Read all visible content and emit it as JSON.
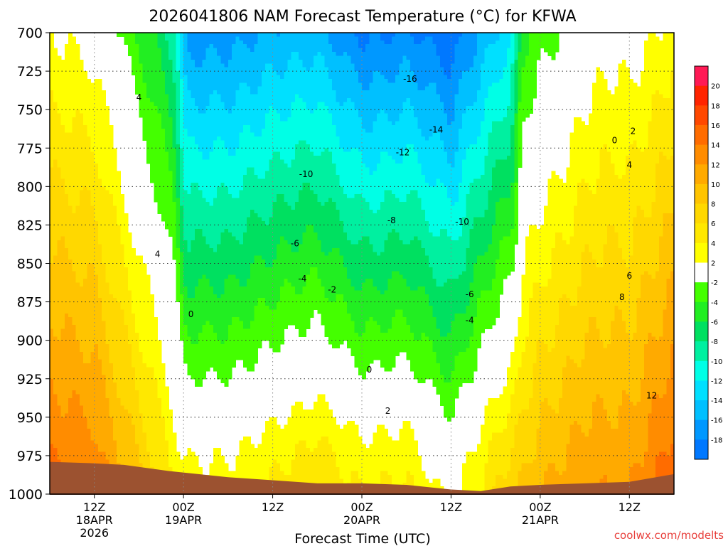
{
  "chart_data": {
    "type": "heatmap",
    "title": "2026041806 NAM Forecast Temperature (°C) for KFWA",
    "xlabel": "Forecast Time (UTC)",
    "ylabel": "",
    "credit": "coolwx.com/modelts",
    "y_axis": {
      "unit": "hPa",
      "reversed": true,
      "range": [
        700,
        1000
      ],
      "ticks": [
        700,
        725,
        750,
        775,
        800,
        825,
        850,
        875,
        900,
        925,
        950,
        975,
        1000
      ]
    },
    "x_axis": {
      "range_hours": [
        0,
        84
      ],
      "ticks": [
        {
          "hour": 6,
          "lines": [
            "12Z",
            "18APR",
            "2026"
          ]
        },
        {
          "hour": 18,
          "lines": [
            "00Z",
            "19APR"
          ]
        },
        {
          "hour": 30,
          "lines": [
            "12Z"
          ]
        },
        {
          "hour": 42,
          "lines": [
            "00Z",
            "20APR"
          ]
        },
        {
          "hour": 54,
          "lines": [
            "12Z"
          ]
        },
        {
          "hour": 66,
          "lines": [
            "00Z",
            "21APR"
          ]
        },
        {
          "hour": 78,
          "lines": [
            "12Z"
          ]
        }
      ]
    },
    "grid": true,
    "colorbar": {
      "placement": "right",
      "labels": [
        "20",
        "18",
        "16",
        "14",
        "12",
        "10",
        "8",
        "6",
        "4",
        "2",
        "-2",
        "-4",
        "-6",
        "-8",
        "-10",
        "-12",
        "-14",
        "-16",
        "-18"
      ],
      "colors": [
        "#ff1a55",
        "#ff2400",
        "#ff4800",
        "#ff6c00",
        "#ff8c00",
        "#ffaa00",
        "#ffc400",
        "#ffd800",
        "#ffe800",
        "#ffff00",
        "#ffffff",
        "#44ff00",
        "#22ee22",
        "#00e060",
        "#00f0a0",
        "#00ffe6",
        "#00e0ff",
        "#00c0ff",
        "#0098ff",
        "#0078ff"
      ]
    },
    "contour_labels": [
      {
        "text": "4",
        "hour": 12,
        "hPa": 742
      },
      {
        "text": "4",
        "hour": 14.5,
        "hPa": 844
      },
      {
        "text": "0",
        "hour": 19,
        "hPa": 883
      },
      {
        "text": "-16",
        "hour": 48.5,
        "hPa": 730
      },
      {
        "text": "-14",
        "hour": 52,
        "hPa": 763
      },
      {
        "text": "-12",
        "hour": 47.5,
        "hPa": 778
      },
      {
        "text": "-10",
        "hour": 34.5,
        "hPa": 792
      },
      {
        "text": "-8",
        "hour": 46,
        "hPa": 822
      },
      {
        "text": "-10",
        "hour": 55.5,
        "hPa": 823
      },
      {
        "text": "-6",
        "hour": 33,
        "hPa": 837
      },
      {
        "text": "-4",
        "hour": 34,
        "hPa": 860
      },
      {
        "text": "-2",
        "hour": 38,
        "hPa": 867
      },
      {
        "text": "-6",
        "hour": 56.5,
        "hPa": 870
      },
      {
        "text": "-4",
        "hour": 56.5,
        "hPa": 887
      },
      {
        "text": "0",
        "hour": 43,
        "hPa": 919
      },
      {
        "text": "2",
        "hour": 45.5,
        "hPa": 946
      },
      {
        "text": "0",
        "hour": 76,
        "hPa": 770
      },
      {
        "text": "2",
        "hour": 78.5,
        "hPa": 764
      },
      {
        "text": "4",
        "hour": 78,
        "hPa": 786
      },
      {
        "text": "6",
        "hour": 78,
        "hPa": 858
      },
      {
        "text": "8",
        "hour": 77,
        "hPa": 872
      },
      {
        "text": "12",
        "hour": 81,
        "hPa": 936
      }
    ]
  }
}
